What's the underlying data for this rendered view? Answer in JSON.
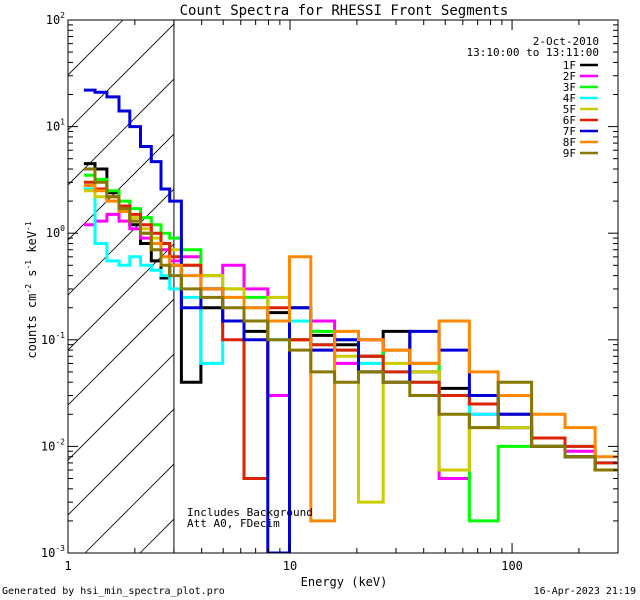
{
  "chart_data": {
    "type": "line",
    "title": "Count Spectra for RHESSI Front Segments",
    "xlabel": "Energy (keV)",
    "ylabel": "counts cm^-2 s^-1 keV^-1",
    "xscale": "log",
    "yscale": "log",
    "xlim": [
      1,
      300
    ],
    "ylim": [
      0.001,
      100
    ],
    "x_tick_labels": [
      "1",
      "10",
      "100"
    ],
    "y_tick_labels": [
      {
        "base": "10",
        "exp": "-3"
      },
      {
        "base": "10",
        "exp": "-2"
      },
      {
        "base": "10",
        "exp": "-1"
      },
      {
        "base": "10",
        "exp": "0"
      },
      {
        "base": "10",
        "exp": "1"
      },
      {
        "base": "10",
        "exp": "2"
      }
    ],
    "date": "2-Oct-2010",
    "time_range": "13:10:00 to 13:11:00",
    "annotation_lines": [
      "Includes Background",
      "Att A0, FDecim"
    ],
    "shaded_region_keV": [
      1,
      3
    ],
    "series": [
      {
        "name": "1F",
        "color": "#000000",
        "x": [
          1.25,
          1.4,
          1.6,
          1.8,
          2.0,
          2.25,
          2.5,
          2.75,
          3.0,
          3.5,
          4.5,
          5.5,
          7,
          9,
          11,
          14,
          18,
          23,
          30,
          40,
          55,
          75,
          100,
          150,
          200,
          280
        ],
        "values": [
          4.5,
          4.0,
          2.4,
          1.8,
          1.2,
          0.8,
          0.55,
          0.38,
          0.5,
          0.04,
          0.2,
          0.15,
          0.12,
          0.18,
          0.1,
          0.11,
          0.09,
          0.07,
          0.12,
          0.05,
          0.035,
          0.03,
          0.015,
          0.01,
          0.008,
          0.006
        ]
      },
      {
        "name": "2F",
        "color": "#ff00ff",
        "x": [
          1.25,
          1.4,
          1.6,
          1.8,
          2.0,
          2.25,
          2.5,
          2.75,
          3.0,
          3.5,
          4.5,
          5.5,
          7,
          9,
          11,
          14,
          18,
          23,
          30,
          40,
          55,
          75,
          100,
          150,
          200,
          280
        ],
        "values": [
          1.2,
          1.3,
          1.5,
          1.3,
          1.1,
          0.9,
          0.8,
          0.7,
          0.55,
          0.6,
          0.4,
          0.5,
          0.3,
          0.03,
          0.2,
          0.15,
          0.06,
          0.1,
          0.08,
          0.06,
          0.005,
          0.02,
          0.015,
          0.012,
          0.009,
          0.006
        ]
      },
      {
        "name": "3F",
        "color": "#00ff00",
        "x": [
          1.25,
          1.4,
          1.6,
          1.8,
          2.0,
          2.25,
          2.5,
          2.75,
          3.0,
          3.5,
          4.5,
          5.5,
          7,
          9,
          11,
          14,
          18,
          23,
          30,
          40,
          55,
          75,
          100,
          150,
          200,
          280
        ],
        "values": [
          3.5,
          3.2,
          2.5,
          2.0,
          1.7,
          1.4,
          1.2,
          1.0,
          0.9,
          0.7,
          0.4,
          0.3,
          0.25,
          0.15,
          0.2,
          0.12,
          0.1,
          0.05,
          0.08,
          0.06,
          0.03,
          0.002,
          0.01,
          0.01,
          0.008,
          0.006
        ]
      },
      {
        "name": "4F",
        "color": "#00ffff",
        "x": [
          1.25,
          1.4,
          1.6,
          1.8,
          2.0,
          2.25,
          2.5,
          2.75,
          3.0,
          3.5,
          4.5,
          5.5,
          7,
          9,
          11,
          14,
          18,
          23,
          30,
          40,
          55,
          75,
          100,
          150,
          200,
          280
        ],
        "values": [
          2.6,
          0.8,
          0.55,
          0.5,
          0.6,
          0.5,
          0.45,
          0.4,
          0.3,
          0.25,
          0.06,
          0.15,
          0.2,
          0.1,
          0.15,
          0.09,
          0.08,
          0.06,
          0.05,
          0.04,
          0.03,
          0.02,
          0.015,
          0.01,
          0.01,
          0.007
        ]
      },
      {
        "name": "5F",
        "color": "#cccc00",
        "x": [
          1.25,
          1.4,
          1.6,
          1.8,
          2.0,
          2.25,
          2.5,
          2.75,
          3.0,
          3.5,
          4.5,
          5.5,
          7,
          9,
          11,
          14,
          18,
          23,
          30,
          40,
          55,
          75,
          100,
          150,
          200,
          280
        ],
        "values": [
          2.5,
          2.2,
          2.0,
          1.6,
          1.4,
          1.1,
          0.9,
          0.8,
          0.7,
          0.5,
          0.4,
          0.3,
          0.2,
          0.25,
          0.1,
          0.08,
          0.07,
          0.003,
          0.06,
          0.05,
          0.006,
          0.015,
          0.015,
          0.01,
          0.008,
          0.006
        ]
      },
      {
        "name": "6F",
        "color": "#dd2200",
        "x": [
          1.25,
          1.4,
          1.6,
          1.8,
          2.0,
          2.25,
          2.5,
          2.75,
          3.0,
          3.5,
          4.5,
          5.5,
          7,
          9,
          11,
          14,
          18,
          23,
          30,
          40,
          55,
          75,
          100,
          150,
          200,
          280
        ],
        "values": [
          3.0,
          2.6,
          2.2,
          1.8,
          1.5,
          1.2,
          1.0,
          0.8,
          0.6,
          0.5,
          0.3,
          0.1,
          0.005,
          0.2,
          0.1,
          0.09,
          0.08,
          0.07,
          0.05,
          0.04,
          0.03,
          0.025,
          0.02,
          0.012,
          0.01,
          0.007
        ]
      },
      {
        "name": "7F",
        "color": "#0000dd",
        "x": [
          1.25,
          1.4,
          1.6,
          1.8,
          2.0,
          2.25,
          2.5,
          2.75,
          3.0,
          3.5,
          4.5,
          5.5,
          7,
          9,
          11,
          14,
          18,
          23,
          30,
          40,
          55,
          75,
          100,
          150,
          200,
          280
        ],
        "values": [
          22,
          21,
          19,
          14,
          10,
          6.5,
          4.7,
          2.6,
          2.0,
          0.2,
          0.3,
          0.15,
          0.1,
          0.001,
          0.2,
          0.08,
          0.1,
          0.05,
          0.04,
          0.12,
          0.08,
          0.03,
          0.02,
          0.01,
          0.008,
          0.006
        ]
      },
      {
        "name": "8F",
        "color": "#ff8800",
        "x": [
          1.25,
          1.4,
          1.6,
          1.8,
          2.0,
          2.25,
          2.5,
          2.75,
          3.0,
          3.5,
          4.5,
          5.5,
          7,
          9,
          11,
          14,
          18,
          23,
          30,
          40,
          55,
          75,
          100,
          150,
          200,
          280
        ],
        "values": [
          2.8,
          2.5,
          2.0,
          1.6,
          1.3,
          1.0,
          0.8,
          0.6,
          0.5,
          0.4,
          0.3,
          0.25,
          0.2,
          0.15,
          0.6,
          0.002,
          0.12,
          0.1,
          0.08,
          0.06,
          0.15,
          0.05,
          0.03,
          0.02,
          0.015,
          0.008
        ]
      },
      {
        "name": "9F",
        "color": "#887700",
        "x": [
          1.25,
          1.4,
          1.6,
          1.8,
          2.0,
          2.25,
          2.5,
          2.75,
          3.0,
          3.5,
          4.5,
          5.5,
          7,
          9,
          11,
          14,
          18,
          23,
          30,
          40,
          55,
          75,
          100,
          150,
          200,
          280
        ],
        "values": [
          4.0,
          3.0,
          2.2,
          1.7,
          1.3,
          1.0,
          0.7,
          0.5,
          0.4,
          0.3,
          0.25,
          0.2,
          0.15,
          0.1,
          0.08,
          0.05,
          0.04,
          0.05,
          0.04,
          0.03,
          0.02,
          0.015,
          0.04,
          0.01,
          0.008,
          0.006
        ]
      }
    ]
  },
  "footer": {
    "generated_by": "Generated by hsi_min_spectra_plot.pro",
    "timestamp": "16-Apr-2023 21:19"
  }
}
